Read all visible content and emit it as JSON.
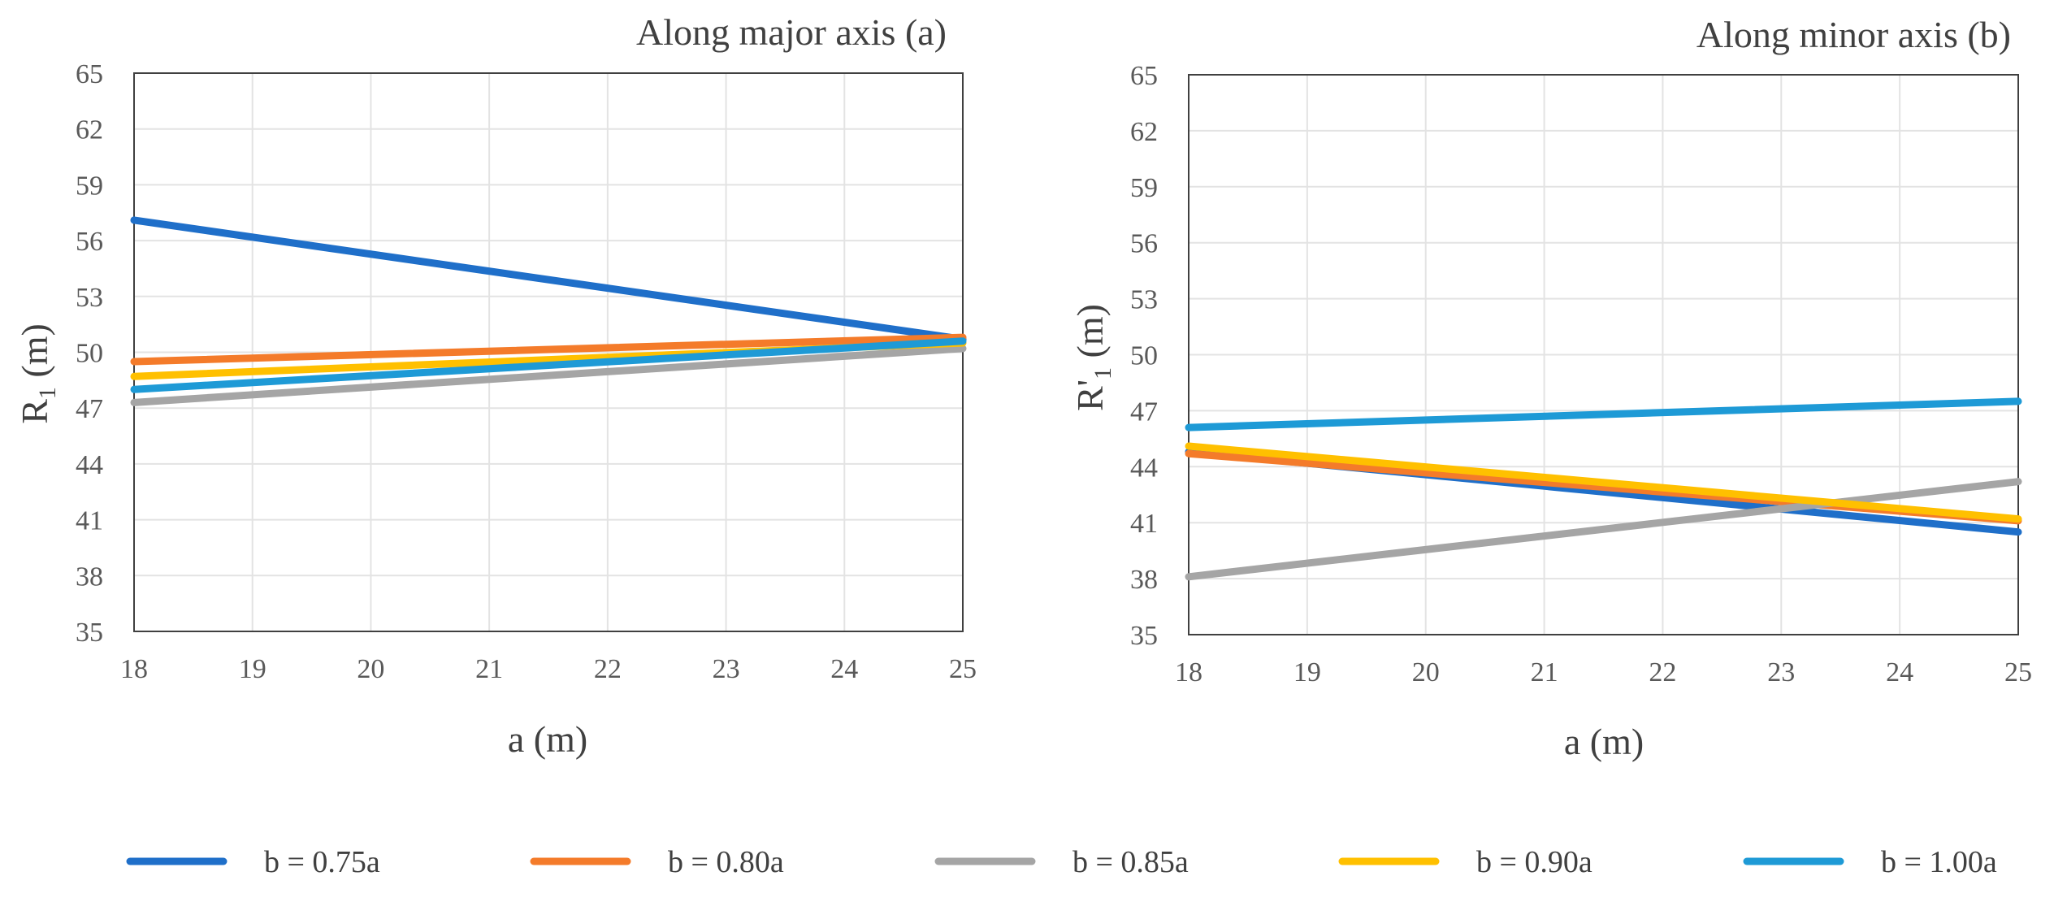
{
  "chart_data": [
    {
      "type": "line",
      "title": "Along major axis (a)",
      "xlabel": "a (m)",
      "ylabel_main": "R",
      "ylabel_sub": "1",
      "ylabel_rest": " (m)",
      "x": [
        18,
        25
      ],
      "xlim": [
        18,
        25
      ],
      "ylim": [
        35,
        65
      ],
      "xticks": [
        "18",
        "19",
        "20",
        "21",
        "22",
        "23",
        "24",
        "25"
      ],
      "yticks": [
        "35",
        "38",
        "41",
        "44",
        "47",
        "50",
        "53",
        "56",
        "59",
        "62",
        "65"
      ],
      "grid": true,
      "series": [
        {
          "name": "b = 0.75a",
          "color": "#1F6FC9",
          "values": [
            57.1,
            50.7
          ]
        },
        {
          "name": "b = 0.80a",
          "color": "#F47B2A",
          "values": [
            49.5,
            50.8
          ]
        },
        {
          "name": "b = 0.85a",
          "color": "#A5A5A5",
          "values": [
            47.3,
            50.2
          ]
        },
        {
          "name": "b = 0.90a",
          "color": "#FFC000",
          "values": [
            48.7,
            50.5
          ]
        },
        {
          "name": "b = 1.00a",
          "color": "#1E9AD6",
          "values": [
            48.0,
            50.6
          ]
        }
      ]
    },
    {
      "type": "line",
      "title": "Along minor axis (b)",
      "xlabel": "a (m)",
      "ylabel_main": "R'",
      "ylabel_sub": "1",
      "ylabel_rest": " (m)",
      "x": [
        18,
        25
      ],
      "xlim": [
        18,
        25
      ],
      "ylim": [
        35,
        65
      ],
      "xticks": [
        "18",
        "19",
        "20",
        "21",
        "22",
        "23",
        "24",
        "25"
      ],
      "yticks": [
        "35",
        "38",
        "41",
        "44",
        "47",
        "50",
        "53",
        "56",
        "59",
        "62",
        "65"
      ],
      "grid": true,
      "series": [
        {
          "name": "b = 0.75a",
          "color": "#1F6FC9",
          "values": [
            44.8,
            40.5
          ]
        },
        {
          "name": "b = 0.80a",
          "color": "#F47B2A",
          "values": [
            44.7,
            41.1
          ]
        },
        {
          "name": "b = 0.85a",
          "color": "#A5A5A5",
          "values": [
            38.1,
            43.2
          ]
        },
        {
          "name": "b = 0.90a",
          "color": "#FFC000",
          "values": [
            45.1,
            41.2
          ]
        },
        {
          "name": "b = 1.00a",
          "color": "#1E9AD6",
          "values": [
            46.1,
            47.5
          ]
        }
      ]
    }
  ],
  "legend": {
    "position": "bottom",
    "items": [
      {
        "label": "b = 0.75a",
        "color": "#1F6FC9"
      },
      {
        "label": "b = 0.80a",
        "color": "#F47B2A"
      },
      {
        "label": "b = 0.85a",
        "color": "#A5A5A5"
      },
      {
        "label": "b = 0.90a",
        "color": "#FFC000"
      },
      {
        "label": "b = 1.00a",
        "color": "#1E9AD6"
      }
    ]
  }
}
